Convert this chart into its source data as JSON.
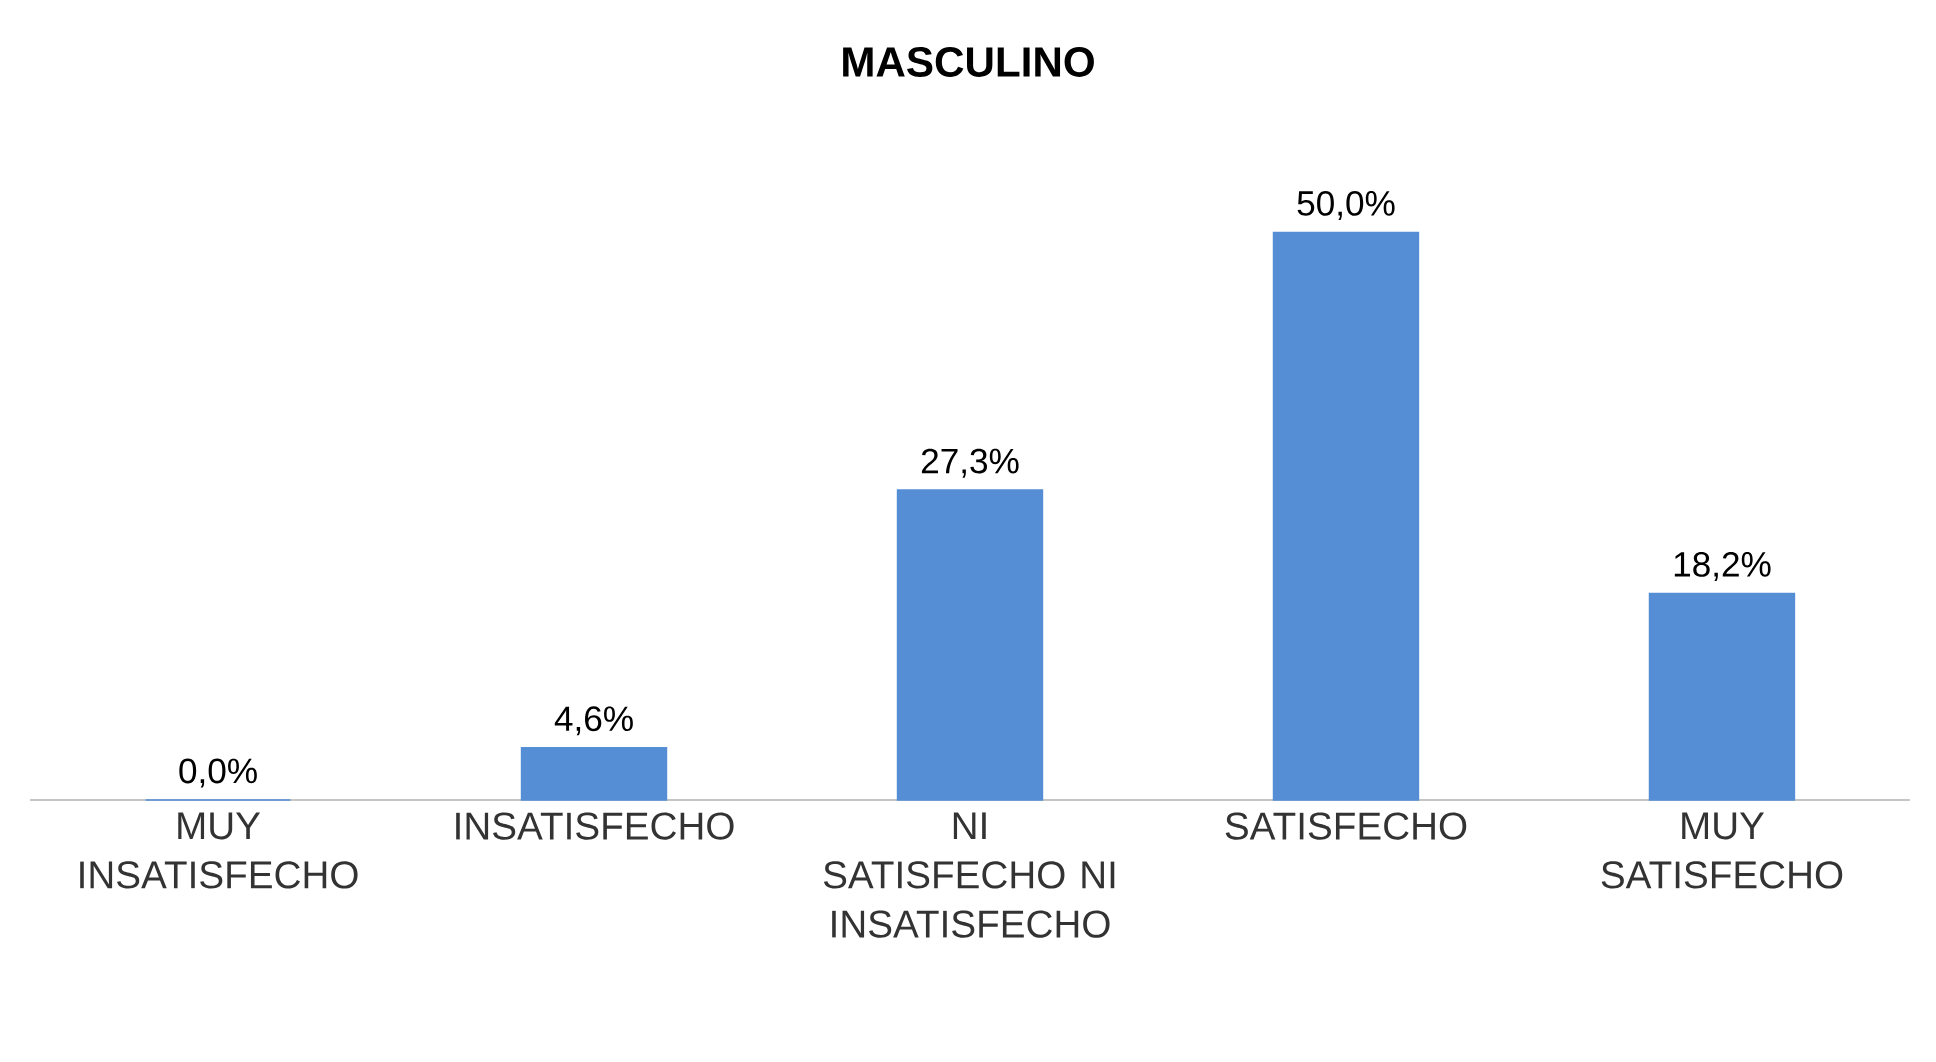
{
  "chart_data": {
    "type": "bar",
    "title": "MASCULINO",
    "categories": [
      "MUY INSATISFECHO",
      "INSATISFECHO",
      "NI SATISFECHO NI INSATISFECHO",
      "SATISFECHO",
      "MUY SATISFECHO"
    ],
    "values": [
      0.0,
      4.6,
      27.3,
      50.0,
      18.2
    ],
    "value_labels": [
      "0,0%",
      "4,6%",
      "27,3%",
      "50,0%",
      "18,2%"
    ],
    "color": "#558ed5"
  }
}
